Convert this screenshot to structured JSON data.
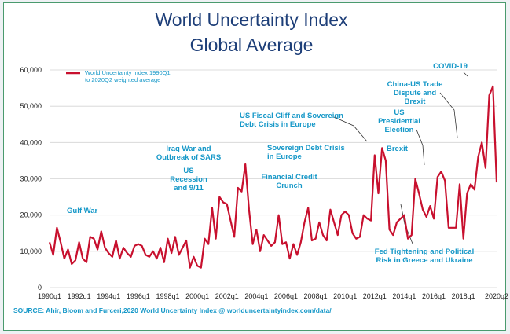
{
  "chart_data": {
    "type": "line",
    "title": [
      "World Uncertainty Index",
      "Global Average"
    ],
    "legend": [
      "World Uncertainty Index 1990Q1",
      "to 2020Q2 weighted average"
    ],
    "line_color": "#c8102e",
    "accent_color": "#1698c8",
    "title_color": "#1d3e78",
    "xlabel": "",
    "ylabel": "",
    "ylim": [
      0,
      60000
    ],
    "y_ticks": [
      "0",
      "10,000",
      "20,000",
      "30,000",
      "40,000",
      "50,000",
      "60,000"
    ],
    "y_tick_values": [
      0,
      10000,
      20000,
      30000,
      40000,
      50000,
      60000
    ],
    "x_start": "1990q1",
    "x_ticks": [
      "1990q1",
      "1992q1",
      "1994q1",
      "1996q1",
      "1998q1",
      "2000q1",
      "2002q1",
      "2004q1",
      "2006q1",
      "2008q1",
      "2010q1",
      "2012q1",
      "2014q1",
      "2016q1",
      "2018q1",
      "2020q2"
    ],
    "x_tick_index": [
      0,
      8,
      16,
      24,
      32,
      40,
      48,
      56,
      64,
      72,
      80,
      88,
      96,
      104,
      112,
      121
    ],
    "series": [
      {
        "name": "World Uncertainty Index 1990Q1 to 2020Q2 weighted average",
        "values": [
          12500,
          9000,
          16500,
          12500,
          8000,
          10500,
          6500,
          7500,
          12500,
          8000,
          7000,
          14000,
          13500,
          10500,
          15500,
          11000,
          9500,
          8500,
          13000,
          8000,
          11000,
          9500,
          8500,
          11500,
          12000,
          11500,
          9000,
          8500,
          10000,
          8000,
          11000,
          7000,
          13500,
          9500,
          14000,
          9000,
          11000,
          13000,
          5500,
          8500,
          6000,
          5500,
          13500,
          12000,
          22000,
          13500,
          25000,
          23500,
          23000,
          18500,
          14000,
          27500,
          26500,
          34000,
          21500,
          12000,
          16000,
          10000,
          14500,
          13000,
          11500,
          12500,
          20000,
          12000,
          12500,
          8000,
          12000,
          9000,
          12500,
          18000,
          22000,
          13000,
          13500,
          18000,
          14500,
          13000,
          21500,
          18000,
          14500,
          20000,
          21000,
          20000,
          15000,
          13500,
          14000,
          20000,
          19000,
          18500,
          36500,
          26000,
          38500,
          35000,
          16000,
          14500,
          18000,
          19000,
          20000,
          13500,
          14500,
          30000,
          26000,
          21500,
          19500,
          22500,
          19000,
          30500,
          32000,
          29500,
          16500,
          16500,
          16500,
          28500,
          13500,
          26000,
          28500,
          27000,
          36000,
          40000,
          33000,
          53000,
          55500,
          29000
        ]
      }
    ],
    "annotations": [
      {
        "lines": [
          "Gulf War"
        ]
      },
      {
        "lines": [
          "Iraq War and",
          "Outbreak of SARS"
        ]
      },
      {
        "lines": [
          "US",
          "Recession",
          "and 9/11"
        ]
      },
      {
        "lines": [
          "Financial Credit",
          "Crunch"
        ]
      },
      {
        "lines": [
          "Sovereign Debt Crisis",
          "in Europe"
        ]
      },
      {
        "lines": [
          "US Fiscal Cliff and Sovereign",
          "Debt Crisis in Europe"
        ]
      },
      {
        "lines": [
          "US",
          "Presidential",
          "Election"
        ]
      },
      {
        "lines": [
          "Brexit"
        ]
      },
      {
        "lines": [
          "China-US Trade",
          "Dispute and",
          "Brexit"
        ]
      },
      {
        "lines": [
          "COVID-19"
        ]
      },
      {
        "lines": [
          "Fed Tightening and Political",
          "Risk in Greece and Ukraine"
        ]
      }
    ],
    "source": "SOURCE: Ahir, Bloom and Furceri,2020 World Uncertainty Index @ worlduncertaintyindex.com/data/"
  }
}
